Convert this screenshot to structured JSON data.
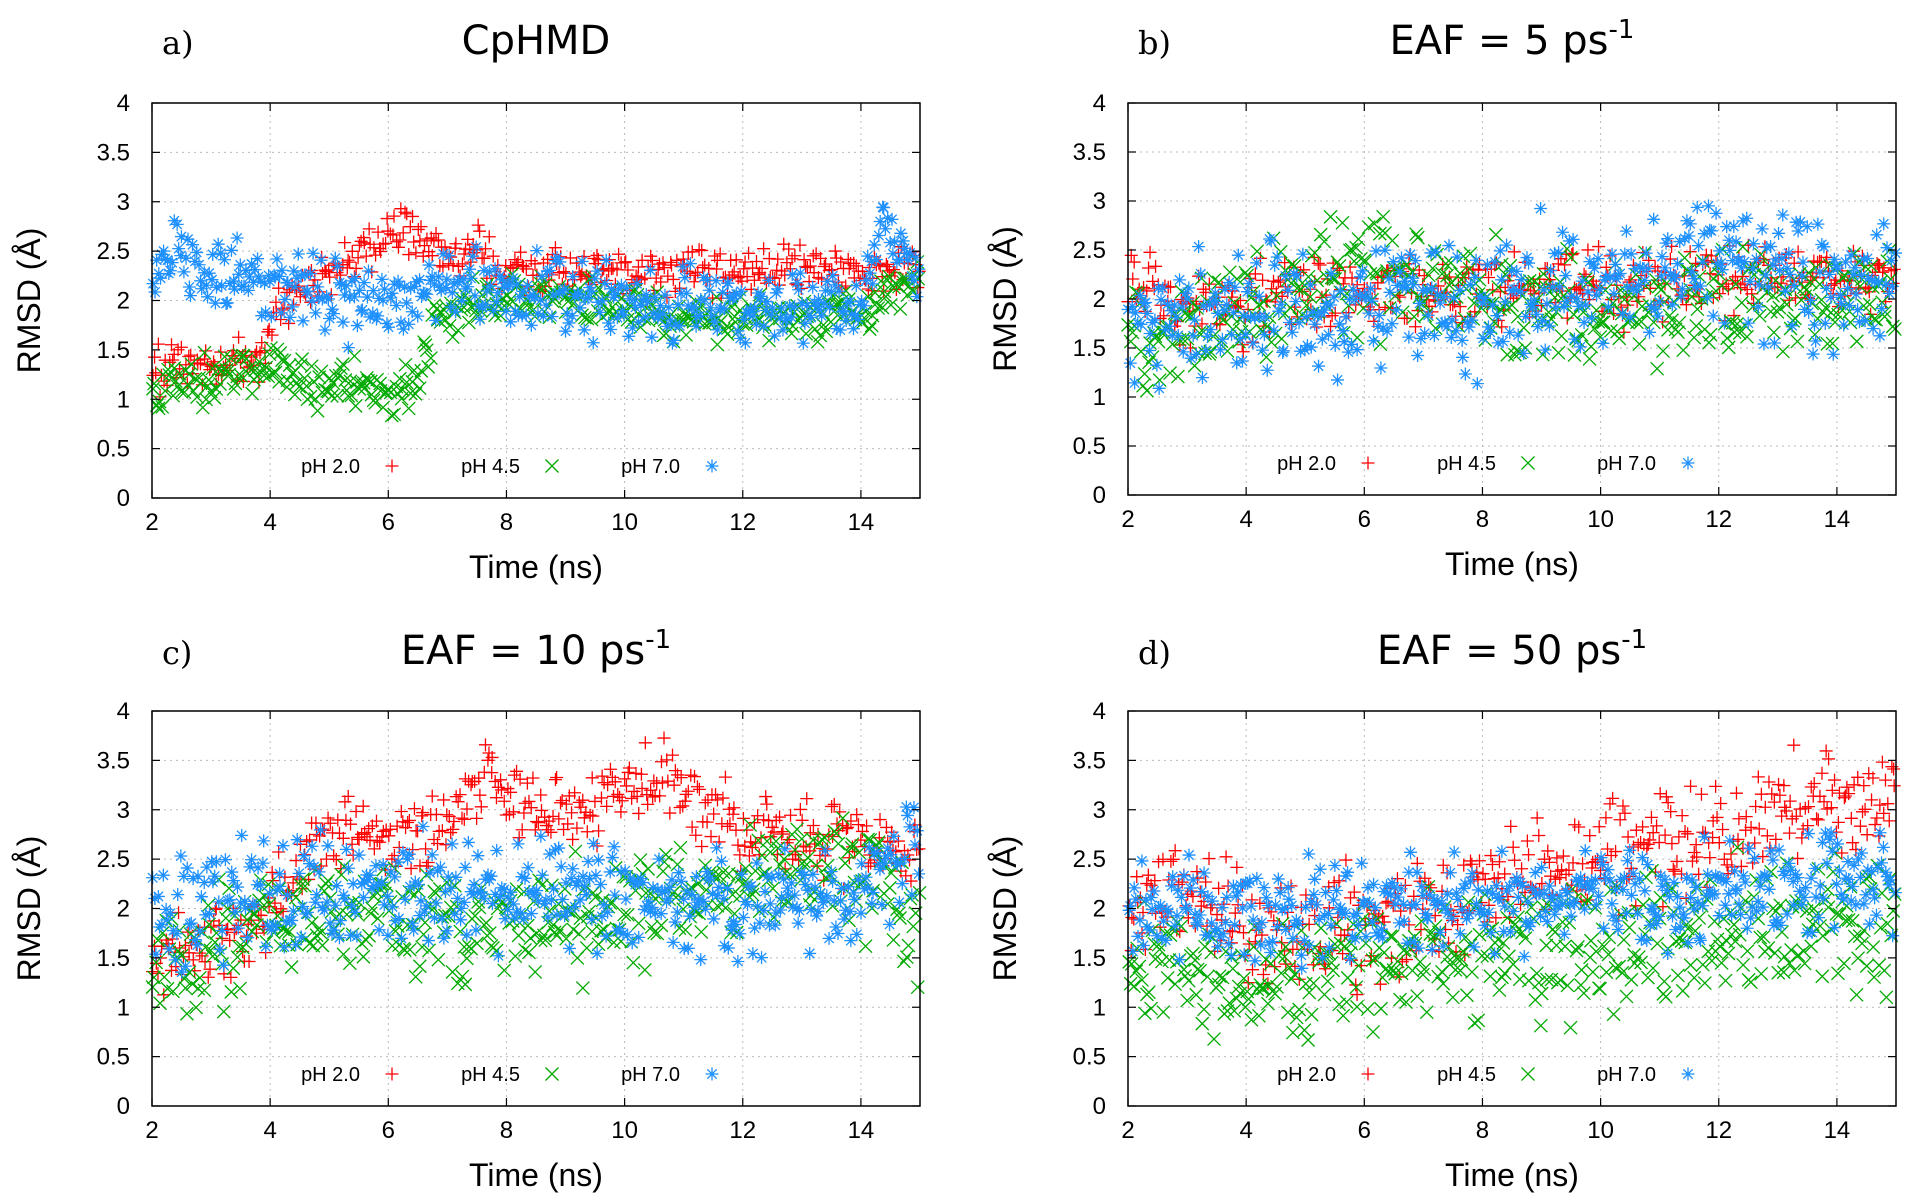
{
  "chart_data": [
    {
      "panel": "a)",
      "title": "CpHMD",
      "title_sup": "",
      "type": "scatter",
      "xlabel": "Time (ns)",
      "ylabel": "RMSD (Å)",
      "xlim": [
        2,
        15
      ],
      "ylim": [
        0,
        4
      ],
      "xticks": [
        2,
        4,
        6,
        8,
        10,
        12,
        14
      ],
      "yticks": [
        0,
        0.5,
        1,
        1.5,
        2,
        2.5,
        3,
        3.5,
        4
      ],
      "grid": true,
      "legend_position": "bottom",
      "series": [
        {
          "name": "pH 2.0",
          "marker": "plus",
          "color": "#ff0000",
          "trend": [
            [
              2,
              1.3
            ],
            [
              3.2,
              1.35
            ],
            [
              3.8,
              1.45
            ],
            [
              4.3,
              2.0
            ],
            [
              5,
              2.25
            ],
            [
              5.8,
              2.6
            ],
            [
              6.3,
              2.75
            ],
            [
              7,
              2.45
            ],
            [
              7.5,
              2.5
            ],
            [
              8,
              2.3
            ],
            [
              10,
              2.25
            ],
            [
              12,
              2.3
            ],
            [
              13,
              2.35
            ],
            [
              14,
              2.3
            ],
            [
              15,
              2.3
            ]
          ],
          "spread": 0.12
        },
        {
          "name": "pH 4.5",
          "marker": "x",
          "color": "#00aa00",
          "trend": [
            [
              2,
              1.15
            ],
            [
              3,
              1.2
            ],
            [
              4,
              1.4
            ],
            [
              4.6,
              1.15
            ],
            [
              5.3,
              1.2
            ],
            [
              6,
              1.05
            ],
            [
              6.4,
              1.15
            ],
            [
              6.8,
              1.7
            ],
            [
              7.5,
              2.0
            ],
            [
              8,
              2.1
            ],
            [
              10,
              1.9
            ],
            [
              12,
              1.8
            ],
            [
              14,
              1.9
            ],
            [
              15,
              2.2
            ]
          ],
          "spread": 0.12
        },
        {
          "name": "pH 7.0",
          "marker": "asterisk",
          "color": "#1e90ff",
          "trend": [
            [
              2,
              2.2
            ],
            [
              2.4,
              2.6
            ],
            [
              3,
              2.2
            ],
            [
              4,
              2.1
            ],
            [
              5,
              2.05
            ],
            [
              6,
              2.0
            ],
            [
              7,
              2.15
            ],
            [
              8,
              2.1
            ],
            [
              10,
              2.0
            ],
            [
              12,
              1.95
            ],
            [
              14,
              2.0
            ],
            [
              14.4,
              2.8
            ],
            [
              14.8,
              2.4
            ],
            [
              15,
              2.2
            ]
          ],
          "spread": 0.18
        }
      ]
    },
    {
      "panel": "b)",
      "title": "EAF = 5 ps",
      "title_sup": "-1",
      "type": "scatter",
      "xlabel": "Time (ns)",
      "ylabel": "RMSD (Å)",
      "xlim": [
        2,
        15
      ],
      "ylim": [
        0,
        4
      ],
      "xticks": [
        2,
        4,
        6,
        8,
        10,
        12,
        14
      ],
      "yticks": [
        0,
        0.5,
        1,
        1.5,
        2,
        2.5,
        3,
        3.5,
        4
      ],
      "grid": true,
      "legend_position": "bottom",
      "series": [
        {
          "name": "pH 2.0",
          "marker": "plus",
          "color": "#ff0000",
          "trend": [
            [
              2,
              2.3
            ],
            [
              3,
              1.9
            ],
            [
              5,
              2.0
            ],
            [
              7,
              2.1
            ],
            [
              9,
              2.1
            ],
            [
              11,
              2.15
            ],
            [
              13,
              2.2
            ],
            [
              15,
              2.25
            ]
          ],
          "spread": 0.2
        },
        {
          "name": "pH 4.5",
          "marker": "x",
          "color": "#00aa00",
          "trend": [
            [
              2,
              1.6
            ],
            [
              3,
              1.7
            ],
            [
              5,
              2.1
            ],
            [
              6,
              2.3
            ],
            [
              8,
              2.0
            ],
            [
              10,
              1.9
            ],
            [
              12,
              2.0
            ],
            [
              14,
              2.0
            ],
            [
              15,
              2.1
            ]
          ],
          "spread": 0.28
        },
        {
          "name": "pH 7.0",
          "marker": "asterisk",
          "color": "#1e90ff",
          "trend": [
            [
              2,
              1.7
            ],
            [
              4,
              1.85
            ],
            [
              6,
              1.9
            ],
            [
              8,
              2.0
            ],
            [
              10,
              2.1
            ],
            [
              11.7,
              2.4
            ],
            [
              13,
              2.2
            ],
            [
              15,
              2.2
            ]
          ],
          "spread": 0.32
        }
      ]
    },
    {
      "panel": "c)",
      "title": "EAF = 10 ps",
      "title_sup": "-1",
      "type": "scatter",
      "xlabel": "Time (ns)",
      "ylabel": "RMSD (Å)",
      "xlim": [
        2,
        15
      ],
      "ylim": [
        0,
        4
      ],
      "xticks": [
        2,
        4,
        6,
        8,
        10,
        12,
        14
      ],
      "yticks": [
        0,
        0.5,
        1,
        1.5,
        2,
        2.5,
        3,
        3.5,
        4
      ],
      "grid": true,
      "legend_position": "bottom",
      "series": [
        {
          "name": "pH 2.0",
          "marker": "plus",
          "color": "#ff0000",
          "trend": [
            [
              2,
              1.5
            ],
            [
              3,
              1.6
            ],
            [
              4,
              2.0
            ],
            [
              5,
              2.85
            ],
            [
              6,
              2.7
            ],
            [
              7,
              2.9
            ],
            [
              7.7,
              3.35
            ],
            [
              8.5,
              3.0
            ],
            [
              9.5,
              3.0
            ],
            [
              10.5,
              3.35
            ],
            [
              11.2,
              3.1
            ],
            [
              12,
              2.8
            ],
            [
              13,
              2.7
            ],
            [
              14,
              2.6
            ],
            [
              15,
              2.5
            ]
          ],
          "spread": 0.18
        },
        {
          "name": "pH 4.5",
          "marker": "x",
          "color": "#00aa00",
          "trend": [
            [
              2,
              1.4
            ],
            [
              3,
              1.5
            ],
            [
              4,
              2.0
            ],
            [
              6,
              1.9
            ],
            [
              8,
              1.8
            ],
            [
              10,
              2.0
            ],
            [
              12,
              2.2
            ],
            [
              13.5,
              2.5
            ],
            [
              15,
              1.9
            ]
          ],
          "spread": 0.3
        },
        {
          "name": "pH 7.0",
          "marker": "asterisk",
          "color": "#1e90ff",
          "trend": [
            [
              2,
              1.9
            ],
            [
              3,
              2.1
            ],
            [
              4,
              2.1
            ],
            [
              6,
              2.2
            ],
            [
              8,
              2.2
            ],
            [
              10,
              2.15
            ],
            [
              12,
              2.0
            ],
            [
              14,
              2.2
            ],
            [
              15,
              2.6
            ]
          ],
          "spread": 0.28
        }
      ]
    },
    {
      "panel": "d)",
      "title": "EAF = 50 ps",
      "title_sup": "-1",
      "type": "scatter",
      "xlabel": "Time (ns)",
      "ylabel": "RMSD (Å)",
      "xlim": [
        2,
        15
      ],
      "ylim": [
        0,
        4
      ],
      "xticks": [
        2,
        4,
        6,
        8,
        10,
        12,
        14
      ],
      "yticks": [
        0,
        0.5,
        1,
        1.5,
        2,
        2.5,
        3,
        3.5,
        4
      ],
      "grid": true,
      "legend_position": "bottom",
      "series": [
        {
          "name": "pH 2.0",
          "marker": "plus",
          "color": "#ff0000",
          "trend": [
            [
              2,
              2.0
            ],
            [
              3,
              2.2
            ],
            [
              4,
              1.8
            ],
            [
              5,
              1.8
            ],
            [
              6,
              1.8
            ],
            [
              7,
              1.9
            ],
            [
              8,
              2.2
            ],
            [
              9,
              2.4
            ],
            [
              10,
              2.5
            ],
            [
              11,
              2.6
            ],
            [
              12,
              2.7
            ],
            [
              13,
              3.1
            ],
            [
              14,
              3.0
            ],
            [
              15,
              3.0
            ]
          ],
          "spread": 0.28
        },
        {
          "name": "pH 4.5",
          "marker": "x",
          "color": "#00aa00",
          "trend": [
            [
              2,
              1.4
            ],
            [
              3,
              1.4
            ],
            [
              4,
              1.3
            ],
            [
              6,
              1.4
            ],
            [
              8,
              1.6
            ],
            [
              10,
              1.6
            ],
            [
              12,
              1.8
            ],
            [
              14,
              1.8
            ],
            [
              15,
              1.8
            ]
          ],
          "spread": 0.3
        },
        {
          "name": "pH 7.0",
          "marker": "asterisk",
          "color": "#1e90ff",
          "trend": [
            [
              2,
              1.9
            ],
            [
              3,
              2.0
            ],
            [
              4,
              2.0
            ],
            [
              6,
              2.0
            ],
            [
              8,
              2.0
            ],
            [
              10,
              2.1
            ],
            [
              12,
              2.2
            ],
            [
              14,
              2.3
            ],
            [
              15,
              2.3
            ]
          ],
          "spread": 0.25
        }
      ]
    }
  ]
}
